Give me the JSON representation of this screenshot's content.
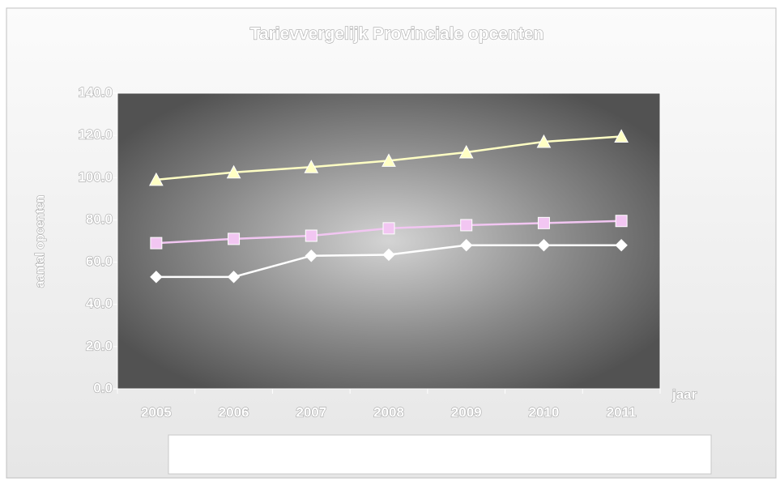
{
  "chart_data": {
    "type": "line",
    "title": "Tarievvergelijk Provinciale opcenten",
    "y_label": "aantal opcenten",
    "x_label": "jaar",
    "categories": [
      "2005",
      "2006",
      "2007",
      "2008",
      "2009",
      "2010",
      "2011"
    ],
    "series": [
      {
        "color": "#ffffff",
        "marker": "diamond",
        "values": [
          53,
          53,
          63,
          63.5,
          68,
          68,
          68
        ]
      },
      {
        "color": "#f2c6f2",
        "marker": "square",
        "values": [
          69,
          71,
          72.5,
          76,
          77.5,
          78.5,
          79.5
        ]
      },
      {
        "color": "#ffffc4",
        "marker": "triangle",
        "values": [
          99,
          102.5,
          105,
          108,
          112,
          117,
          119.5
        ]
      }
    ],
    "ylim": [
      0,
      140
    ],
    "yticks": [
      {
        "value": 0,
        "label": "0.0"
      },
      {
        "value": 20,
        "label": "20.0"
      },
      {
        "value": 40,
        "label": "40.0"
      },
      {
        "value": 60,
        "label": "60.0"
      },
      {
        "value": 80,
        "label": "80.0"
      },
      {
        "value": 100,
        "label": "100.0"
      },
      {
        "value": 120,
        "label": "120.0"
      },
      {
        "value": 140,
        "label": "140.0"
      }
    ]
  }
}
